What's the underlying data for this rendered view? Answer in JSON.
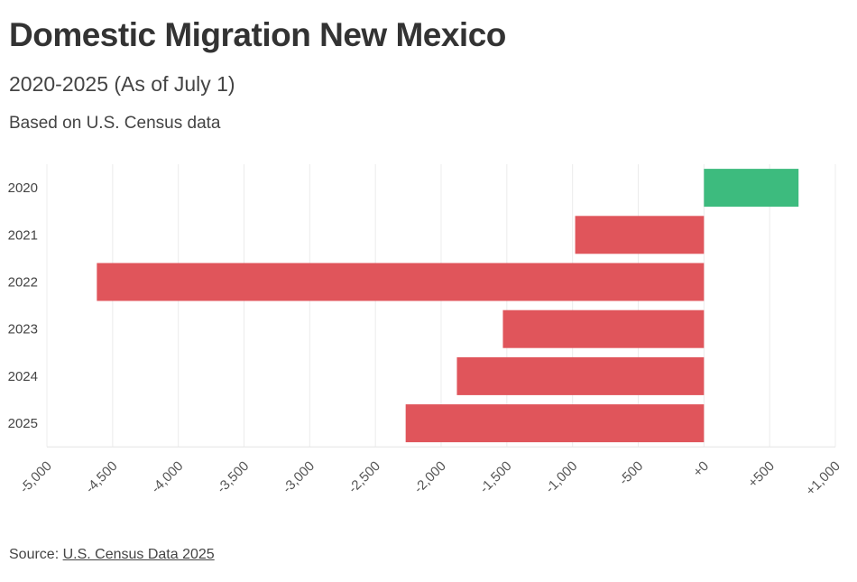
{
  "header": {
    "title": "Domestic Migration New Mexico",
    "subtitle": "2020-2025 (As of July 1)",
    "note": "Based on U.S. Census data"
  },
  "footer": {
    "source_prefix": "Source: ",
    "source_link": "U.S. Census Data 2025"
  },
  "chart_data": {
    "type": "bar",
    "orientation": "horizontal",
    "categories": [
      "2020",
      "2021",
      "2022",
      "2023",
      "2024",
      "2025"
    ],
    "values": [
      720,
      -980,
      -4620,
      -1530,
      -1880,
      -2270
    ],
    "xlim": [
      -5000,
      1000
    ],
    "xticks": [
      -5000,
      -4500,
      -4000,
      -3500,
      -3000,
      -2500,
      -2000,
      -1500,
      -1000,
      -500,
      0,
      500,
      1000
    ],
    "xtick_labels": [
      "-5,000",
      "-4,500",
      "-4,000",
      "-3,500",
      "-3,000",
      "-2,500",
      "-2,000",
      "-1,500",
      "-1,000",
      "-500",
      "+0",
      "+500",
      "+1,000"
    ],
    "grid": true,
    "colors": {
      "positive": "#3dbb7e",
      "negative": "#e0555b",
      "grid": "#ececec"
    }
  }
}
